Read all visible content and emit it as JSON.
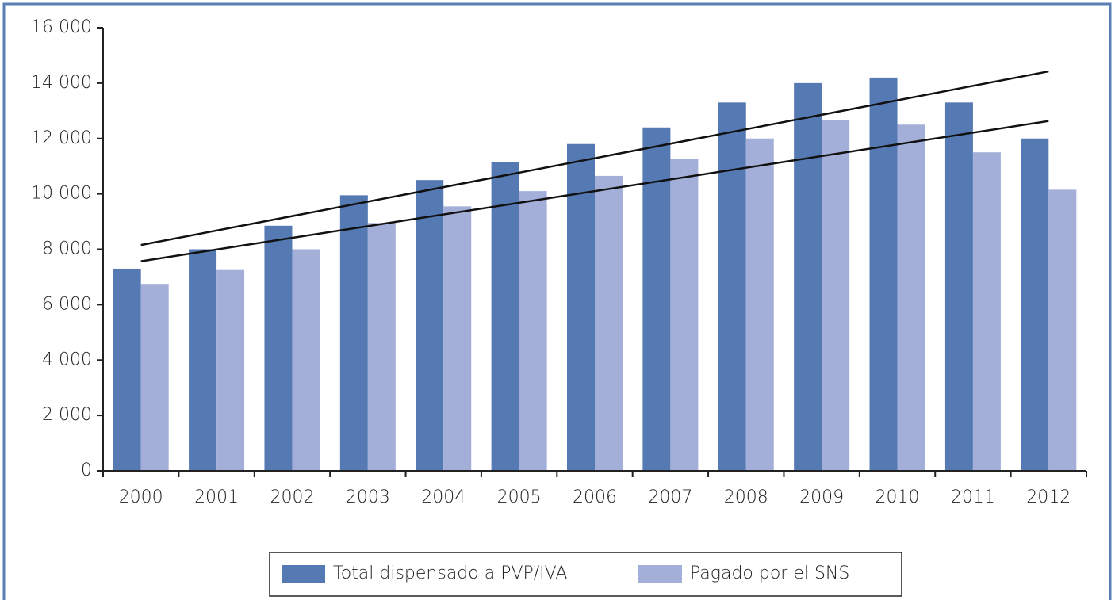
{
  "chart_data": {
    "type": "bar",
    "categories": [
      "2000",
      "2001",
      "2002",
      "2003",
      "2004",
      "2005",
      "2006",
      "2007",
      "2008",
      "2009",
      "2010",
      "2011",
      "2012"
    ],
    "series": [
      {
        "name": "Total dispensado a PVP/IVA",
        "color": "#5579b3",
        "values": [
          7300,
          8000,
          8850,
          9950,
          10500,
          11150,
          11800,
          12400,
          13300,
          14000,
          14200,
          13300,
          12000
        ]
      },
      {
        "name": "Pagado por el SNS",
        "color": "#a3aed9",
        "values": [
          6750,
          7250,
          8000,
          8950,
          9550,
          10100,
          10650,
          11250,
          12000,
          12650,
          12500,
          11500,
          10150
        ]
      }
    ],
    "ylim": [
      0,
      16000
    ],
    "yticks": [
      0,
      {
        "value": 2000,
        "label": "2.000"
      },
      {
        "value": 4000,
        "label": "4.000"
      },
      {
        "value": 6000,
        "label": "6.000"
      },
      {
        "value": 8000,
        "label": "8.000"
      },
      {
        "value": 10000,
        "label": "10.000"
      },
      {
        "value": 12000,
        "label": "12.000"
      },
      {
        "value": 14000,
        "label": "14.000"
      },
      {
        "value": 16000,
        "label": "16.000"
      }
    ],
    "trendlines": true
  }
}
